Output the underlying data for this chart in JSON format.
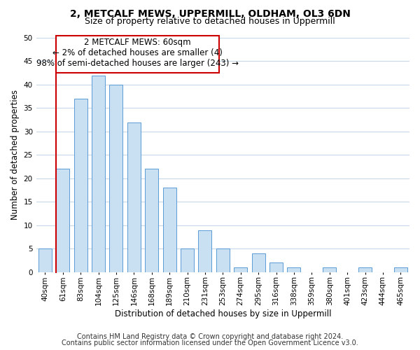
{
  "title": "2, METCALF MEWS, UPPERMILL, OLDHAM, OL3 6DN",
  "subtitle": "Size of property relative to detached houses in Uppermill",
  "xlabel": "Distribution of detached houses by size in Uppermill",
  "ylabel": "Number of detached properties",
  "bar_labels": [
    "40sqm",
    "61sqm",
    "83sqm",
    "104sqm",
    "125sqm",
    "146sqm",
    "168sqm",
    "189sqm",
    "210sqm",
    "231sqm",
    "253sqm",
    "274sqm",
    "295sqm",
    "316sqm",
    "338sqm",
    "359sqm",
    "380sqm",
    "401sqm",
    "423sqm",
    "444sqm",
    "465sqm"
  ],
  "bar_heights": [
    5,
    22,
    37,
    42,
    40,
    32,
    22,
    18,
    5,
    9,
    5,
    1,
    4,
    2,
    1,
    0,
    1,
    0,
    1,
    0,
    1
  ],
  "bar_color": "#c9dff2",
  "bar_edgecolor": "#5b9bd5",
  "highlight_bar_index": 1,
  "highlight_edgecolor": "#cc0000",
  "annotation_box_text": "2 METCALF MEWS: 60sqm\n← 2% of detached houses are smaller (4)\n98% of semi-detached houses are larger (243) →",
  "red_line_bar_index": 1,
  "ylim": [
    0,
    50
  ],
  "yticks": [
    0,
    5,
    10,
    15,
    20,
    25,
    30,
    35,
    40,
    45,
    50
  ],
  "footer1": "Contains HM Land Registry data © Crown copyright and database right 2024.",
  "footer2": "Contains public sector information licensed under the Open Government Licence v3.0.",
  "background_color": "#ffffff",
  "grid_color": "#c8d8e8",
  "title_fontsize": 10,
  "subtitle_fontsize": 9,
  "axis_label_fontsize": 8.5,
  "tick_fontsize": 7.5,
  "annotation_fontsize": 8.5,
  "footer_fontsize": 7
}
